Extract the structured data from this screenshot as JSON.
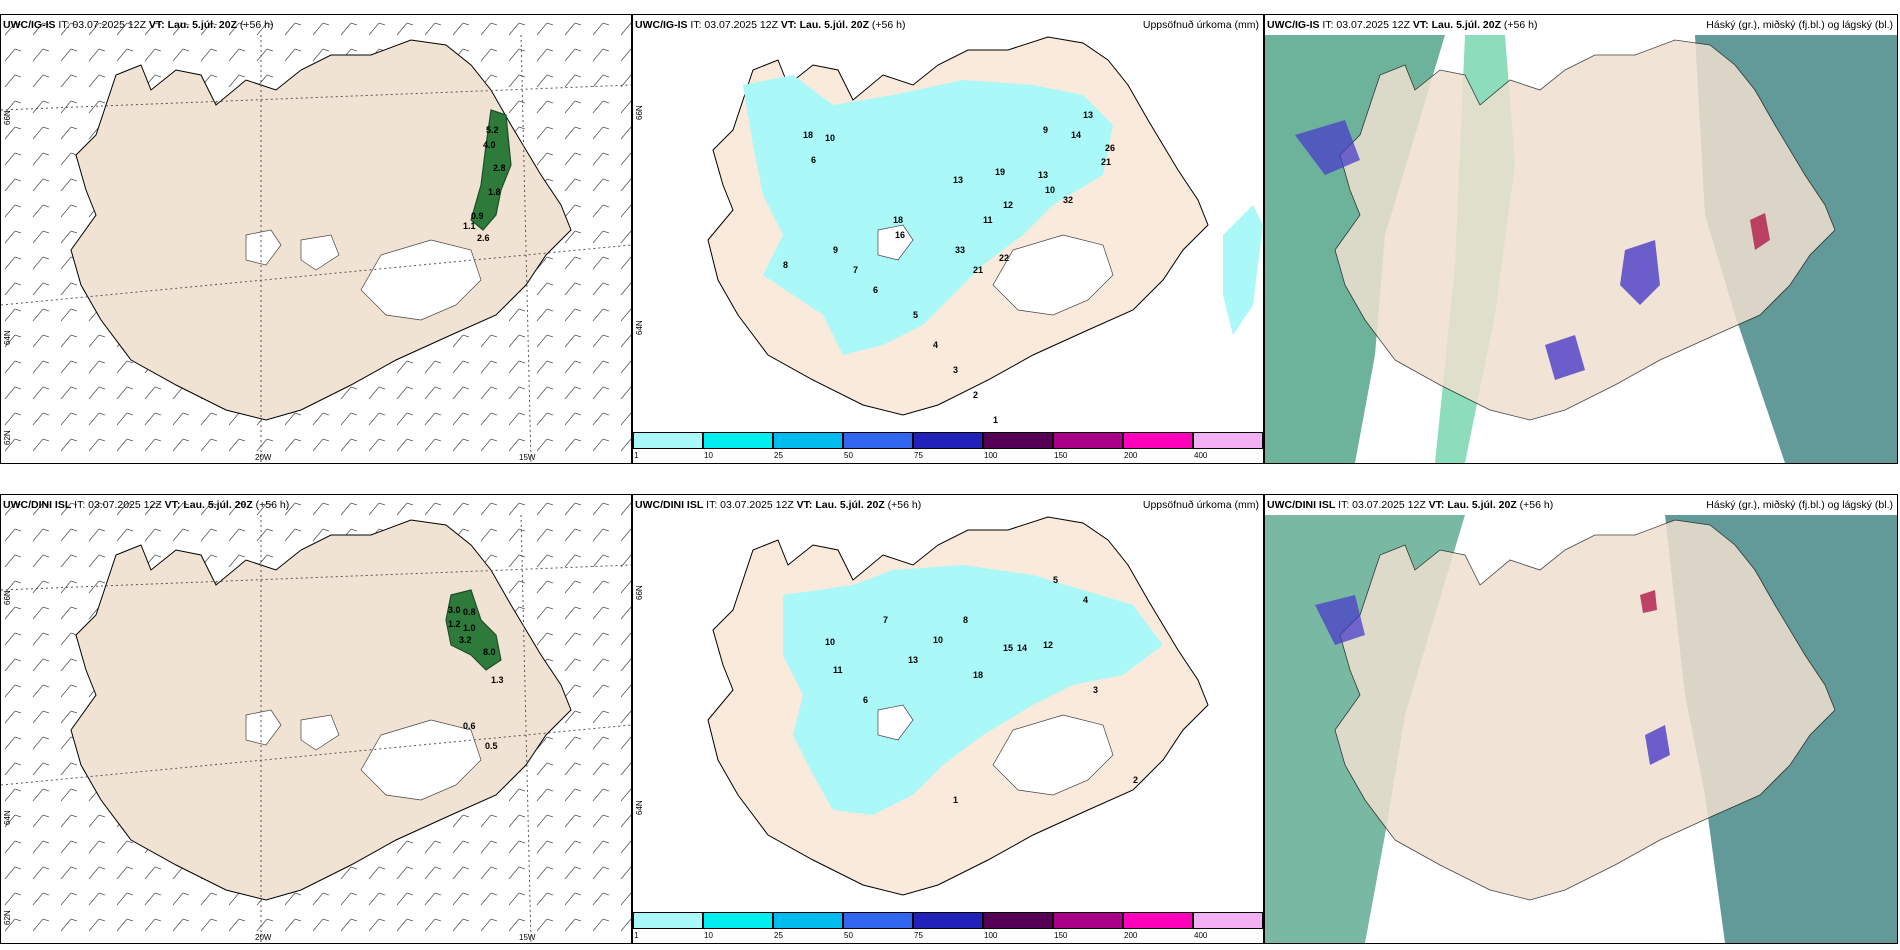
{
  "top": {
    "wind": {
      "model_label": "UWC/IG-IS",
      "it_text": " IT: 03.07.2025 12Z ",
      "vt_label": "VT: Lau. 5.júl. 20Z",
      "lead_text": " (+56 h)",
      "lat_labels": [
        "66N",
        "64N",
        "62N"
      ],
      "lon_labels": [
        "20W",
        "15W"
      ],
      "values": [
        "5.2",
        "4.0",
        "2.8",
        "1.8",
        "0.9",
        "1.1",
        "2.6"
      ]
    },
    "precip": {
      "model_label": "UWC/IG-IS",
      "it_text": " IT: 03.07.2025 12Z ",
      "vt_label": "VT: Lau. 5.júl. 20Z",
      "lead_text": " (+56 h)",
      "right_label": "Uppsöfnuð úrkoma (mm)",
      "lat_labels": [
        "66N",
        "64N"
      ],
      "values": [
        "18",
        "10",
        "6",
        "13",
        "14",
        "26",
        "21",
        "9",
        "32",
        "18",
        "16",
        "13",
        "10",
        "33",
        "22",
        "21",
        "12",
        "11",
        "19",
        "13",
        "9",
        "7",
        "6",
        "5",
        "4",
        "3",
        "2",
        "1",
        "8"
      ]
    },
    "clouds": {
      "model_label": "UWC/IG-IS",
      "it_text": " IT: 03.07.2025 12Z ",
      "vt_label": "VT: Lau. 5.júl. 20Z",
      "lead_text": " (+56 h)",
      "right_label": "Háský (gr.), miðský (fj.bl.) og lágský (bl.)"
    }
  },
  "bottom": {
    "wind": {
      "model_label": "UWC/DINI ISL",
      "it_text": " IT: 03.07.2025 12Z ",
      "vt_label": "VT: Lau. 5.júl. 20Z",
      "lead_text": " (+56 h)",
      "lat_labels": [
        "66N",
        "64N",
        "62N"
      ],
      "lon_labels": [
        "20W",
        "15W"
      ],
      "values": [
        "3.0",
        "0.8",
        "1.2",
        "1.0",
        "3.2",
        "8.0",
        "1.3",
        "0.6",
        "0.5"
      ]
    },
    "precip": {
      "model_label": "UWC/DINI ISL",
      "it_text": " IT: 03.07.2025 12Z ",
      "vt_label": "VT: Lau. 5.júl. 20Z",
      "lead_text": " (+56 h)",
      "right_label": "Uppsöfnuð úrkoma (mm)",
      "lat_labels": [
        "66N",
        "64N"
      ],
      "values": [
        "10",
        "13",
        "18",
        "15",
        "14",
        "12",
        "10",
        "8",
        "7",
        "6",
        "5",
        "4",
        "3",
        "2",
        "1",
        "11"
      ]
    },
    "clouds": {
      "model_label": "UWC/DINI ISL",
      "it_text": " IT: 03.07.2025 12Z ",
      "vt_label": "VT: Lau. 5.júl. 20Z",
      "lead_text": " (+56 h)",
      "right_label": "Háský (gr.), miðský (fj.bl.) og lágský (bl.)"
    }
  },
  "colorbar": {
    "ticks": [
      "1",
      "10",
      "25",
      "50",
      "75",
      "100",
      "150",
      "200",
      "400"
    ],
    "colors": [
      "#aaf8f8",
      "#00eeee",
      "#00bbee",
      "#3366ee",
      "#2222bb",
      "#550055",
      "#aa0088",
      "#ff00bb",
      "#f4b0f4"
    ]
  }
}
